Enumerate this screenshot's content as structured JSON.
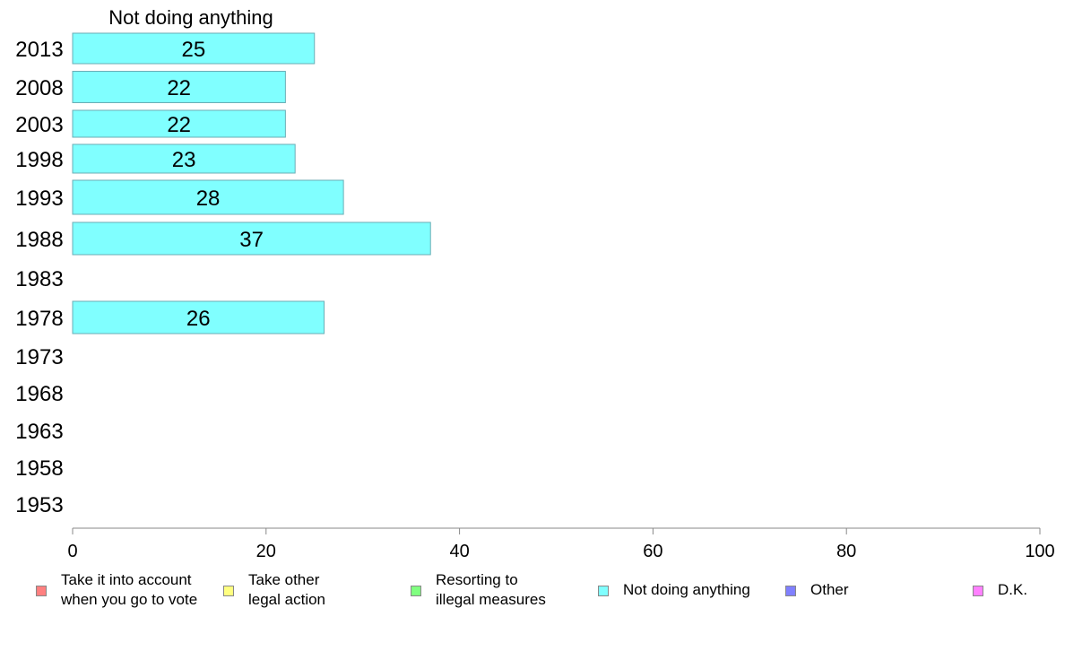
{
  "chart_data": {
    "type": "bar",
    "orientation": "horizontal",
    "title": "Not doing anything",
    "categories": [
      "2013",
      "2008",
      "2003",
      "1998",
      "1993",
      "1988",
      "1983",
      "1978",
      "1973",
      "1968",
      "1963",
      "1958",
      "1953"
    ],
    "series": [
      {
        "name": "Not doing anything",
        "color": "#80ffff",
        "values": [
          25,
          22,
          22,
          23,
          28,
          37,
          null,
          26,
          null,
          null,
          null,
          null,
          null
        ]
      }
    ],
    "xlim": [
      0,
      100
    ],
    "xticks": [
      0,
      20,
      40,
      60,
      80,
      100
    ],
    "grid": false,
    "legend_position": "bottom",
    "legend": [
      {
        "label": "Take it into account\nwhen you go to vote",
        "color": "#ff8080"
      },
      {
        "label": "Take other\nlegal action",
        "color": "#ffff80"
      },
      {
        "label": "Resorting to\nillegal measures",
        "color": "#80ff80"
      },
      {
        "label": "Not doing anything",
        "color": "#80ffff"
      },
      {
        "label": "Other",
        "color": "#8080ff"
      },
      {
        "label": "D.K.",
        "color": "#ff80ff"
      }
    ]
  }
}
